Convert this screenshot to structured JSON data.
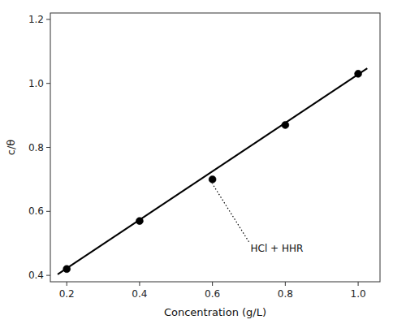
{
  "chart_data": {
    "type": "scatter",
    "xlabel": "Concentration (g/L)",
    "ylabel": "c/θ",
    "series": [
      {
        "type": "line",
        "color": "black",
        "x": [
          0.175,
          1.025
        ],
        "values": [
          0.403,
          1.047
        ]
      },
      {
        "type": "scatter",
        "color": "black",
        "marker": "circle",
        "x": [
          0.2,
          0.4,
          0.6,
          0.8,
          1.0
        ],
        "values": [
          0.42,
          0.57,
          0.7,
          0.87,
          1.03
        ]
      }
    ],
    "xlim": [
      0.155,
      1.06
    ],
    "ylim": [
      0.38,
      1.22
    ],
    "xticks": [
      0.2,
      0.4,
      0.6,
      0.8,
      {
        "value": 1.0,
        "label": "1.0"
      }
    ],
    "yticks": [
      0.4,
      0.6,
      0.8,
      {
        "value": 1.0,
        "label": "1.0"
      },
      1.2
    ],
    "annotations": [
      {
        "text": "HCl + HHR",
        "x": 0.595,
        "y": 0.695,
        "text_x": 0.7,
        "text_y": 0.505
      }
    ]
  }
}
